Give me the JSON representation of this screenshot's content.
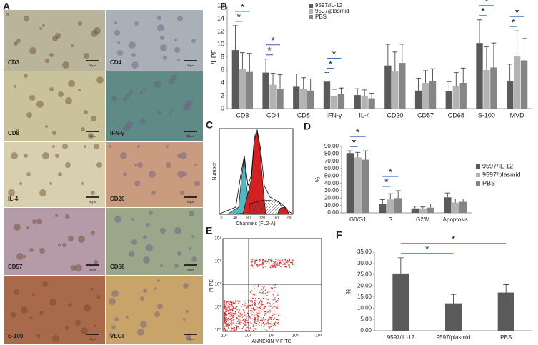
{
  "panel_a": {
    "label": "A",
    "scale_label": "50μm",
    "images": [
      "CD3",
      "CD4",
      "CD8",
      "IFN-γ",
      "IL-4",
      "CD20",
      "CD57",
      "CD68",
      "S-100",
      "VEGF"
    ]
  },
  "panel_c": {
    "label": "C",
    "y_label": "Number",
    "x_label": "Channels (FL2-A)",
    "xticks": [
      "0",
      "40",
      "80",
      "120",
      "160",
      "200"
    ]
  },
  "panel_e": {
    "label": "E",
    "y_label": "PI PE",
    "x_label": "ANNEXIN V FITC",
    "ticks": [
      "10⁰",
      "10¹",
      "10²",
      "10³",
      "10⁴"
    ]
  },
  "chart_data": [
    {
      "type": "bar",
      "panel": "B",
      "y_label": "/HPF",
      "categories": [
        "CD3",
        "CD4",
        "CD8",
        "IFN-γ",
        "IL-4",
        "CD20",
        "CD57",
        "CD68",
        "S-100",
        "MVD"
      ],
      "series": [
        {
          "name": "9597/IL-12",
          "color": "#5a5a5a",
          "values": [
            9.1,
            5.6,
            3.4,
            4.2,
            2.1,
            6.7,
            2.8,
            2.7,
            10.2,
            4.3
          ],
          "errors": [
            3.8,
            2.1,
            2.0,
            1.4,
            1.0,
            3.3,
            1.9,
            1.5,
            3.6,
            2.6
          ]
        },
        {
          "name": "9597/plasmid",
          "color": "#b3b3b3",
          "values": [
            6.2,
            3.7,
            3.1,
            2.0,
            1.9,
            5.8,
            4.0,
            3.5,
            6.0,
            8.1
          ],
          "errors": [
            2.5,
            1.8,
            1.7,
            1.0,
            1.0,
            3.0,
            1.9,
            2.1,
            3.6,
            4.0
          ]
        },
        {
          "name": "PBS",
          "color": "#858585",
          "values": [
            5.7,
            3.1,
            2.8,
            2.3,
            1.6,
            7.1,
            4.3,
            4.0,
            6.4,
            7.5
          ],
          "errors": [
            2.9,
            2.2,
            1.8,
            0.9,
            0.8,
            2.9,
            1.9,
            2.3,
            3.8,
            3.4
          ]
        }
      ],
      "ylim": [
        0,
        16
      ],
      "yticks": [
        0,
        2,
        4,
        6,
        8,
        10,
        12,
        14,
        16
      ],
      "annotations": [
        {
          "text": "*",
          "category": "CD3",
          "between": [
            "9597/IL-12",
            "9597/plasmid"
          ]
        },
        {
          "text": "*",
          "category": "CD3",
          "between": [
            "9597/IL-12",
            "PBS"
          ]
        },
        {
          "text": "*",
          "category": "CD4",
          "between": [
            "9597/IL-12",
            "9597/plasmid"
          ]
        },
        {
          "text": "*",
          "category": "CD4",
          "between": [
            "9597/IL-12",
            "PBS"
          ]
        },
        {
          "text": "*",
          "category": "IFN-γ",
          "between": [
            "9597/IL-12",
            "9597/plasmid"
          ]
        },
        {
          "text": "*",
          "category": "IFN-γ",
          "between": [
            "9597/IL-12",
            "PBS"
          ]
        },
        {
          "text": "*",
          "category": "S-100",
          "between": [
            "9597/IL-12",
            "9597/plasmid"
          ]
        },
        {
          "text": "*",
          "category": "S-100",
          "between": [
            "9597/IL-12",
            "PBS"
          ]
        },
        {
          "text": "*",
          "category": "MVD",
          "between": [
            "9597/IL-12",
            "9597/plasmid"
          ]
        },
        {
          "text": "*",
          "category": "MVD",
          "between": [
            "9597/IL-12",
            "PBS"
          ]
        }
      ]
    },
    {
      "type": "bar",
      "panel": "D",
      "y_label": "%",
      "categories": [
        "G0/G1",
        "S",
        "G2/M",
        "Apoptosis"
      ],
      "series": [
        {
          "name": "9597/IL-12",
          "color": "#5a5a5a",
          "values": [
            81,
            12,
            6,
            21
          ],
          "errors": [
            3,
            6,
            3,
            6
          ]
        },
        {
          "name": "9597/plasmid",
          "color": "#b3b3b3",
          "values": [
            75,
            18,
            6,
            14
          ],
          "errors": [
            7,
            8,
            2,
            5
          ]
        },
        {
          "name": "PBS",
          "color": "#858585",
          "values": [
            72,
            20,
            7,
            15
          ],
          "errors": [
            12,
            10,
            5,
            4
          ]
        }
      ],
      "ylim": [
        0,
        90
      ],
      "yticks": [
        {
          "value": 0,
          "label": "0.00"
        },
        {
          "value": 10,
          "label": "10.00"
        },
        {
          "value": 20,
          "label": "20.00"
        },
        {
          "value": 30,
          "label": "30.00"
        },
        {
          "value": 40,
          "label": "40.00"
        },
        {
          "value": 50,
          "label": "50.00"
        },
        {
          "value": 60,
          "label": "60.00"
        },
        {
          "value": 70,
          "label": "70.00"
        },
        {
          "value": 80,
          "label": "80.00"
        },
        {
          "value": 90,
          "label": "90.00"
        }
      ],
      "annotations": [
        {
          "text": "*",
          "category": "G0/G1",
          "between": [
            "9597/IL-12",
            "9597/plasmid"
          ]
        },
        {
          "text": "*",
          "category": "G0/G1",
          "between": [
            "9597/IL-12",
            "PBS"
          ]
        },
        {
          "text": "*",
          "category": "S",
          "between": [
            "9597/IL-12",
            "9597/plasmid"
          ]
        },
        {
          "text": "*",
          "category": "S",
          "between": [
            "9597/IL-12",
            "PBS"
          ]
        }
      ]
    },
    {
      "type": "bar",
      "panel": "F",
      "y_label": "%",
      "categories": [
        "9597/IL-12",
        "9597/plasmid",
        "PBS"
      ],
      "values": [
        25.5,
        12.2,
        17.0
      ],
      "errors": [
        7.0,
        4.0,
        3.5
      ],
      "color": "#5a5a5a",
      "ylim": [
        0,
        35
      ],
      "yticks": [
        {
          "value": 0,
          "label": "0.00"
        },
        {
          "value": 5,
          "label": "5.00"
        },
        {
          "value": 10,
          "label": "10.00"
        },
        {
          "value": 15,
          "label": "15.00"
        },
        {
          "value": 20,
          "label": "20.00"
        },
        {
          "value": 25,
          "label": "25.00"
        },
        {
          "value": 30,
          "label": "30.00"
        },
        {
          "value": 35,
          "label": "35.00"
        }
      ],
      "annotations": [
        {
          "text": "*",
          "between": [
            "9597/IL-12",
            "9597/plasmid"
          ]
        },
        {
          "text": "*",
          "between": [
            "9597/IL-12",
            "PBS"
          ]
        }
      ]
    }
  ]
}
